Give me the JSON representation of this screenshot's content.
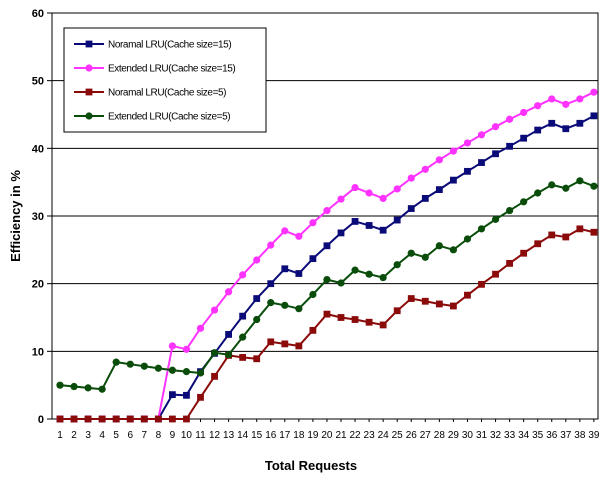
{
  "chart_data": {
    "type": "line",
    "title": "",
    "xlabel": "Total Requests",
    "ylabel": "Efficiency in %",
    "ylim": [
      0,
      60
    ],
    "yticks": [
      0,
      10,
      20,
      30,
      40,
      50,
      60
    ],
    "xlim": [
      1,
      39
    ],
    "grid": "horizontal",
    "legend_position": "top-left",
    "x": [
      1,
      2,
      3,
      4,
      5,
      6,
      7,
      8,
      9,
      10,
      11,
      12,
      13,
      14,
      15,
      16,
      17,
      18,
      19,
      20,
      21,
      22,
      23,
      24,
      25,
      26,
      27,
      28,
      29,
      30,
      31,
      32,
      33,
      34,
      35,
      36,
      37,
      38,
      39
    ],
    "series": [
      {
        "name": "Noramal LRU(Cache size=15)",
        "color": "#0a0a78",
        "marker": "square",
        "values": [
          0,
          0,
          0,
          0,
          0,
          0,
          0,
          0,
          3.6,
          3.5,
          7,
          9.7,
          12.5,
          15.2,
          17.8,
          20,
          22.2,
          21.5,
          23.7,
          25.6,
          27.5,
          29.2,
          28.6,
          27.9,
          29.4,
          31.1,
          32.6,
          33.9,
          35.3,
          36.6,
          37.9,
          39.2,
          40.3,
          41.5,
          42.7,
          43.7,
          42.9,
          43.7,
          44.8
        ]
      },
      {
        "name": "Extended LRU(Cache size=15)",
        "color": "#ff33ff",
        "marker": "circle",
        "values": [
          0,
          0,
          0,
          0,
          0,
          0,
          0,
          0,
          10.8,
          10.3,
          13.4,
          16.1,
          18.8,
          21.3,
          23.5,
          25.7,
          27.8,
          27,
          29,
          30.8,
          32.5,
          34.2,
          33.4,
          32.6,
          34,
          35.6,
          36.9,
          38.3,
          39.6,
          40.8,
          42,
          43.2,
          44.3,
          45.3,
          46.3,
          47.3,
          46.5,
          47.3,
          48.3
        ]
      },
      {
        "name": "Noramal LRU(Cache size=5)",
        "color": "#8b0a0a",
        "marker": "square",
        "values": [
          0,
          0,
          0,
          0,
          0,
          0,
          0,
          0,
          0,
          0,
          3.2,
          6.3,
          9.4,
          9.1,
          8.9,
          11.4,
          11.1,
          10.8,
          13.1,
          15.5,
          15,
          14.7,
          14.3,
          13.9,
          16,
          17.8,
          17.4,
          17,
          16.7,
          18.3,
          19.9,
          21.4,
          23,
          24.5,
          25.9,
          27.2,
          26.9,
          28.1,
          27.6
        ]
      },
      {
        "name": "Extended LRU(Cache size=5)",
        "color": "#0a4d0a",
        "marker": "circle",
        "values": [
          5,
          4.8,
          4.6,
          4.4,
          8.4,
          8.1,
          7.8,
          7.5,
          7.2,
          7,
          6.8,
          9.8,
          9.5,
          12.1,
          14.7,
          17.2,
          16.8,
          16.3,
          18.4,
          20.6,
          20.1,
          22,
          21.4,
          20.9,
          22.8,
          24.5,
          23.9,
          25.6,
          25,
          26.6,
          28.1,
          29.5,
          30.8,
          32.1,
          33.4,
          34.6,
          34.1,
          35.2,
          34.4
        ]
      }
    ]
  }
}
